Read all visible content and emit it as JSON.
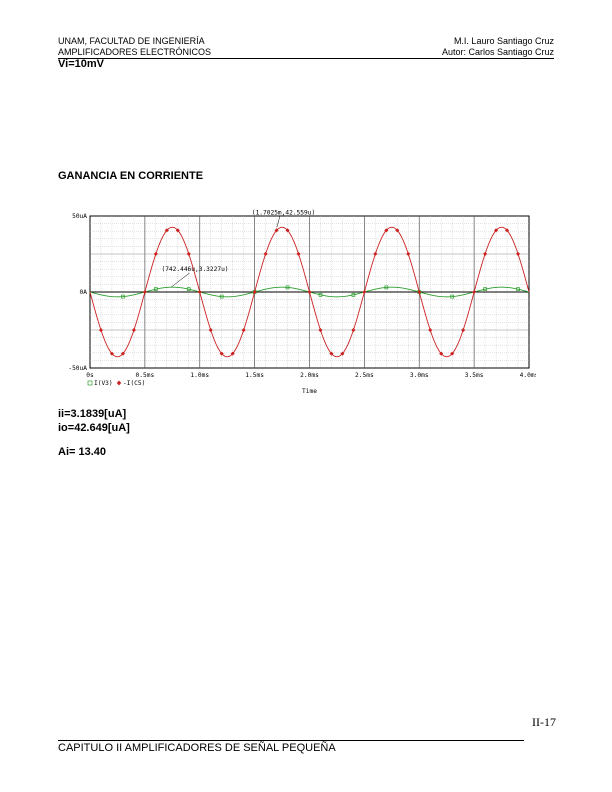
{
  "header": {
    "left_line1": "UNAM, FACULTAD DE INGENIERÍA",
    "left_line2": "AMPLIFICADORES ELECTRÓNICOS",
    "right_line1": "M.I. Lauro Santiago Cruz",
    "right_line2": "Autor: Carlos Santiago Cruz"
  },
  "vi_label": "Vi=10mV",
  "section_title": "GANANCIA EN CORRIENTE",
  "chart_data": {
    "type": "line",
    "x_tick_labels": [
      "0s",
      "0.5ms",
      "1.0ms",
      "1.5ms",
      "2.0ms",
      "2.5ms",
      "3.0ms",
      "3.5ms",
      "4.0ms"
    ],
    "y_tick_labels": [
      "50uA",
      "0A",
      "-50uA"
    ],
    "xlim_ms": [
      0,
      4.0
    ],
    "ylim_uA": [
      -50,
      50
    ],
    "xlabel": "Time",
    "grid": true,
    "legend_position": "bottom-left",
    "series": [
      {
        "name": "I(V3)",
        "color": "#2e9e2e",
        "marker": "square",
        "amplitude_uA": 3.18,
        "frequency_kHz": 1.0,
        "phase_deg": 180
      },
      {
        "name": "-I(C5)",
        "color": "#cc2222",
        "marker": "diamond",
        "amplitude_uA": 42.65,
        "frequency_kHz": 1.0,
        "phase_deg": 180
      }
    ],
    "annotations": [
      {
        "text": "(1.7025m,42.559u)",
        "x_ms": 1.7025,
        "y_uA": 42.559
      },
      {
        "text": "(742.446u,3.3227u)",
        "x_ms": 0.742446,
        "y_uA": 3.3227
      }
    ]
  },
  "results": {
    "ii": "ii=3.1839[uA]",
    "io": "io=42.649[uA]",
    "ai": "Ai= 13.40"
  },
  "page_number": "II-17",
  "footer": "CAPITULO II AMPLIFICADORES DE SEÑAL PEQUEÑA"
}
